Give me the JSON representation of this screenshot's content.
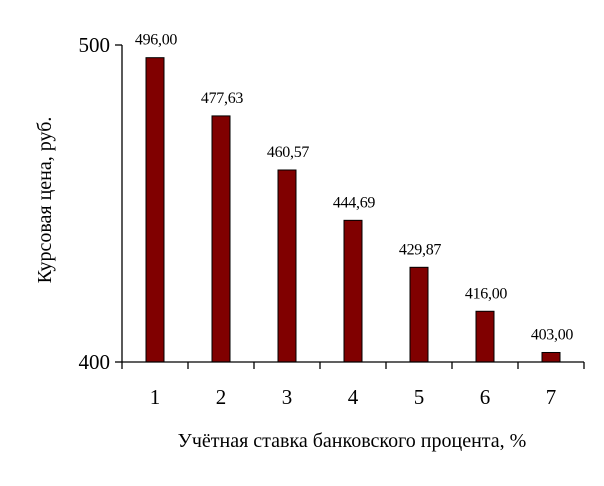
{
  "chart_data": {
    "type": "bar",
    "categories": [
      "1",
      "2",
      "3",
      "4",
      "5",
      "6",
      "7"
    ],
    "values": [
      496.0,
      477.63,
      460.57,
      444.69,
      429.87,
      416.0,
      403.0
    ],
    "data_labels": [
      "496,00",
      "477,63",
      "460,57",
      "444,69",
      "429,87",
      "416,00",
      "403,00"
    ],
    "title": "",
    "xlabel": "Учётная ставка банковского процента, %",
    "ylabel": "Курсовая цена, руб.",
    "ylim": [
      400,
      500
    ],
    "y_ticks": [
      "400",
      "500"
    ],
    "grid": false,
    "legend": "none",
    "colors": {
      "bar_fill": "#800000",
      "bar_stroke": "#000000",
      "axis": "#000000"
    }
  }
}
